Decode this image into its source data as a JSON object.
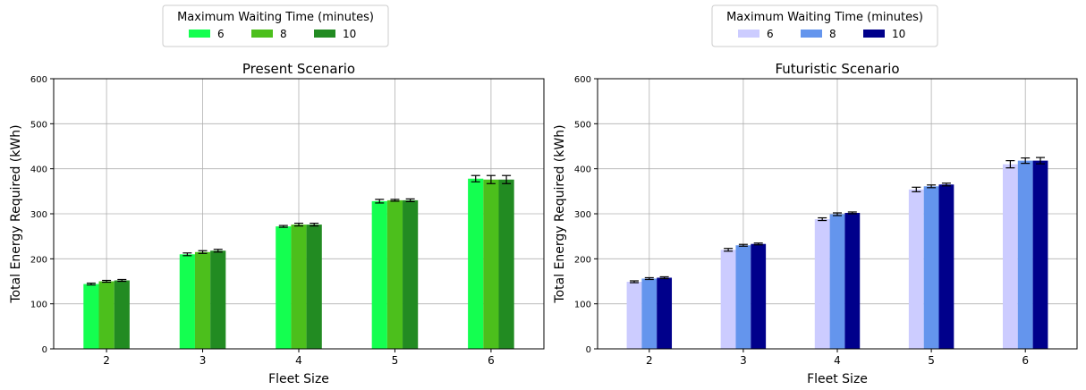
{
  "chart_data": [
    {
      "type": "bar",
      "title": "Present Scenario",
      "xlabel": "Fleet Size",
      "ylabel": "Total Energy Required (kWh)",
      "ylim": [
        0,
        600
      ],
      "yticks": [
        0,
        100,
        200,
        300,
        400,
        500,
        600
      ],
      "grid": true,
      "legend_title": "Maximum Waiting Time (minutes)",
      "legend_position": "top-center (outside, above chart)",
      "categories": [
        "2",
        "3",
        "4",
        "5",
        "6"
      ],
      "series": [
        {
          "name": "6",
          "color": "#14ff50",
          "values": [
            144,
            210,
            272,
            328,
            378
          ],
          "errors": [
            2,
            3,
            2,
            4,
            7
          ]
        },
        {
          "name": "8",
          "color": "#4cbf1c",
          "values": [
            150,
            215,
            276,
            330,
            376
          ],
          "errors": [
            2,
            3,
            3,
            2,
            9
          ]
        },
        {
          "name": "10",
          "color": "#228b22",
          "values": [
            152,
            218,
            276,
            330,
            376
          ],
          "errors": [
            2,
            3,
            3,
            3,
            9
          ]
        }
      ]
    },
    {
      "type": "bar",
      "title": "Futuristic Scenario",
      "xlabel": "Fleet Size",
      "ylabel": "Total Energy Required (kWh)",
      "ylim": [
        0,
        600
      ],
      "yticks": [
        0,
        100,
        200,
        300,
        400,
        500,
        600
      ],
      "grid": true,
      "legend_title": "Maximum Waiting Time (minutes)",
      "legend_position": "top-center (outside, above chart)",
      "categories": [
        "2",
        "3",
        "4",
        "5",
        "6"
      ],
      "series": [
        {
          "name": "6",
          "color": "#ccccff",
          "values": [
            149,
            220,
            288,
            354,
            410
          ],
          "errors": [
            2,
            3,
            3,
            5,
            8
          ]
        },
        {
          "name": "8",
          "color": "#6495ed",
          "values": [
            156,
            230,
            299,
            361,
            418
          ],
          "errors": [
            2,
            2,
            3,
            3,
            6
          ]
        },
        {
          "name": "10",
          "color": "#00008b",
          "values": [
            158,
            233,
            302,
            365,
            418
          ],
          "errors": [
            2,
            2,
            2,
            3,
            7
          ]
        }
      ]
    }
  ]
}
